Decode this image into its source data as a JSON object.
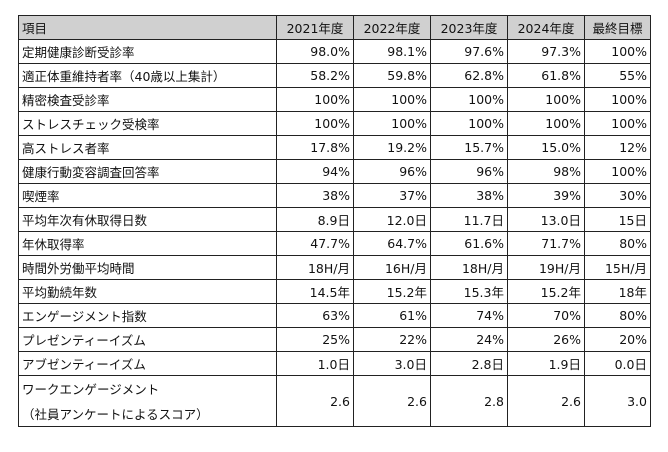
{
  "table": {
    "headers": [
      "項目",
      "2021年度",
      "2022年度",
      "2023年度",
      "2024年度",
      "最終目標"
    ],
    "rows": [
      {
        "label": "定期健康診断受診率",
        "values": [
          "98.0%",
          "98.1%",
          "97.6%",
          "97.3%",
          "100%"
        ]
      },
      {
        "label": "適正体重維持者率（40歳以上集計）",
        "values": [
          "58.2%",
          "59.8%",
          "62.8%",
          "61.8%",
          "55%"
        ]
      },
      {
        "label": "精密検査受診率",
        "values": [
          "100%",
          "100%",
          "100%",
          "100%",
          "100%"
        ]
      },
      {
        "label": "ストレスチェック受検率",
        "values": [
          "100%",
          "100%",
          "100%",
          "100%",
          "100%"
        ]
      },
      {
        "label": "高ストレス者率",
        "values": [
          "17.8%",
          "19.2%",
          "15.7%",
          "15.0%",
          "12%"
        ]
      },
      {
        "label": "健康行動変容調査回答率",
        "values": [
          "94%",
          "96%",
          "96%",
          "98%",
          "100%"
        ]
      },
      {
        "label": "喫煙率",
        "values": [
          "38%",
          "37%",
          "38%",
          "39%",
          "30%"
        ]
      },
      {
        "label": "平均年次有休取得日数",
        "values": [
          "8.9日",
          "12.0日",
          "11.7日",
          "13.0日",
          "15日"
        ]
      },
      {
        "label": "年休取得率",
        "values": [
          "47.7%",
          "64.7%",
          "61.6%",
          "71.7%",
          "80%"
        ]
      },
      {
        "label": "時間外労働平均時間",
        "values": [
          "18H/月",
          "16H/月",
          "18H/月",
          "19H/月",
          "15H/月"
        ]
      },
      {
        "label": "平均勤続年数",
        "values": [
          "14.5年",
          "15.2年",
          "15.3年",
          "15.2年",
          "18年"
        ]
      },
      {
        "label": "エンゲージメント指数",
        "values": [
          "63%",
          "61%",
          "74%",
          "70%",
          "80%"
        ]
      },
      {
        "label": "プレゼンティーイズム",
        "values": [
          "25%",
          "22%",
          "24%",
          "26%",
          "20%"
        ]
      },
      {
        "label": "アブゼンティーイズム",
        "values": [
          "1.0日",
          "3.0日",
          "2.8日",
          "1.9日",
          "0.0日"
        ]
      }
    ],
    "last_row": {
      "label_line1": "ワークエンゲージメント",
      "label_line2": "（社員アンケートによるスコア）",
      "values": [
        "2.6",
        "2.6",
        "2.8",
        "2.6",
        "3.0"
      ]
    }
  }
}
